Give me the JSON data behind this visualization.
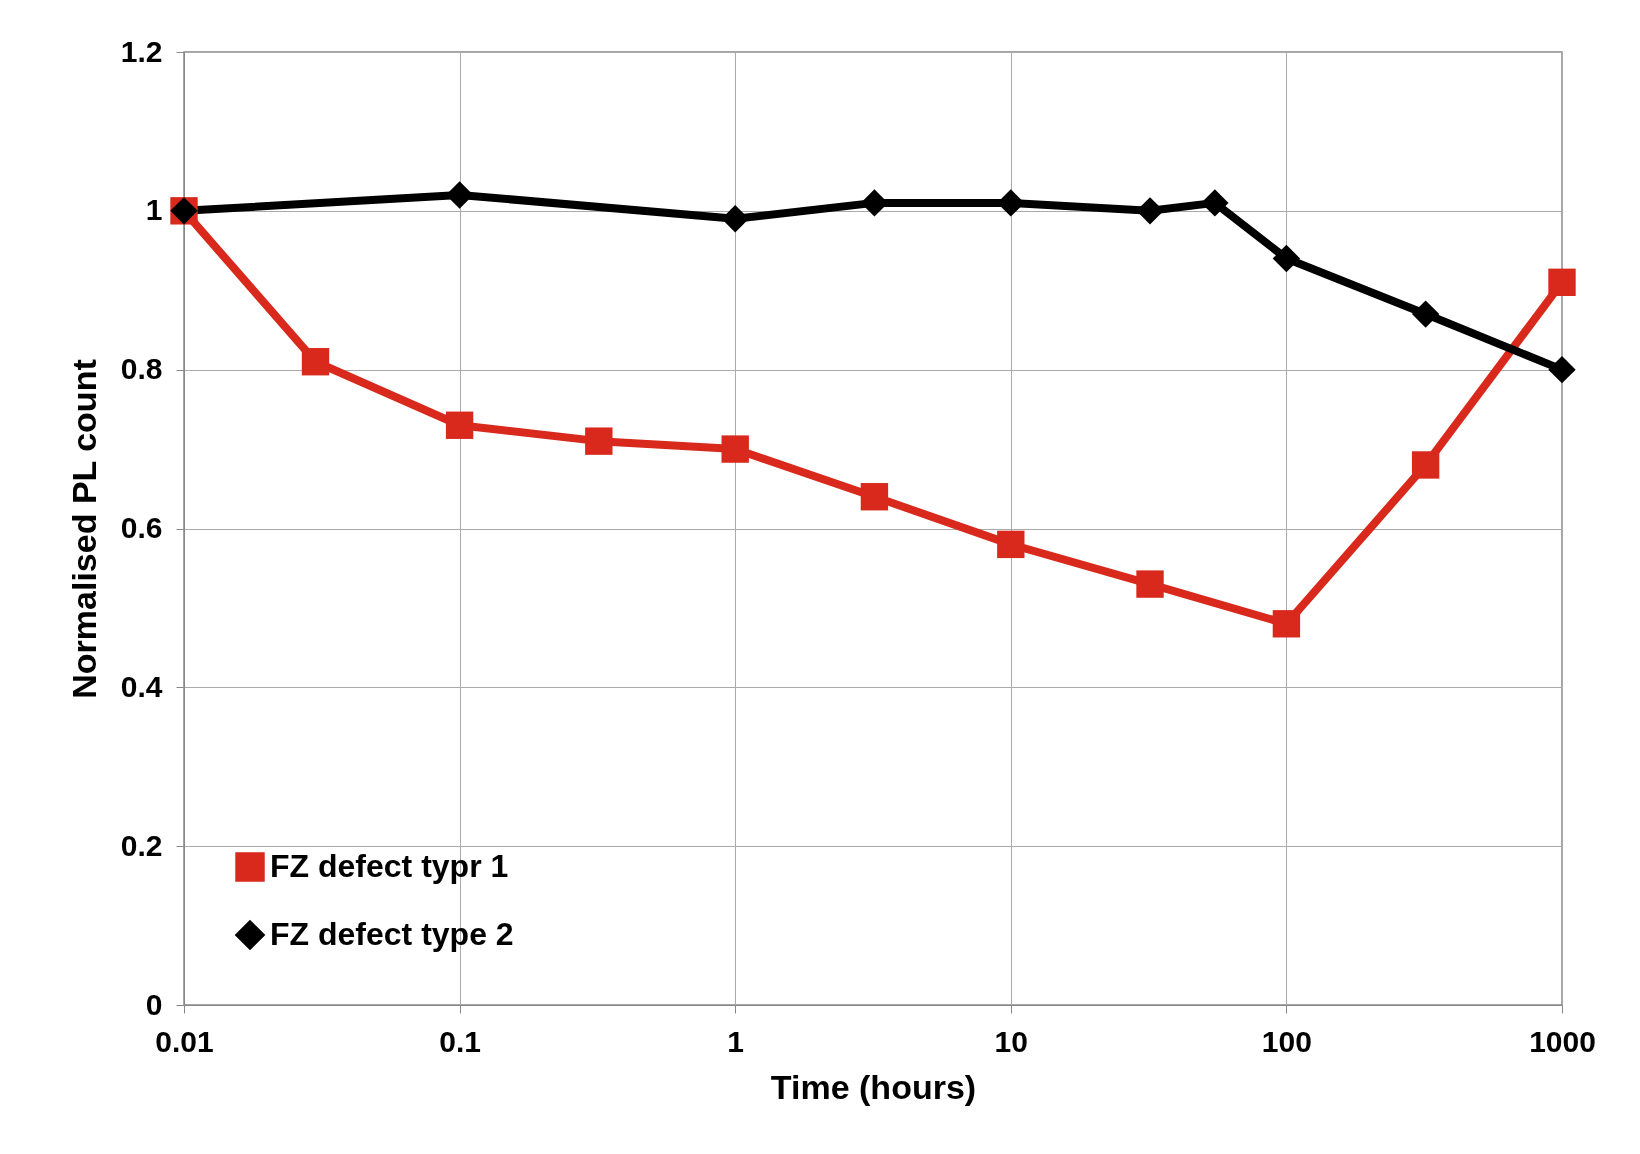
{
  "chart_data": {
    "type": "line",
    "xlabel": "Time (hours)",
    "ylabel": "Normalised PL count",
    "log": "x",
    "xlim": [
      0.01,
      1000
    ],
    "xticks": [
      0.01,
      0.1,
      1,
      10,
      100,
      1000
    ],
    "ylim": [
      0,
      1.2
    ],
    "yticks": [
      0,
      0.2,
      0.4,
      0.6,
      0.8,
      1,
      1.2
    ],
    "grid": true,
    "legend": "bottom left",
    "line_style": "solid",
    "series": [
      {
        "name": "FZ defect typr 1",
        "color": "#d8291c",
        "marker": "square",
        "x": [
          0.01,
          0.03,
          0.1,
          0.32,
          1,
          3.2,
          10,
          32,
          100,
          320,
          1000
        ],
        "values": [
          1.0,
          0.81,
          0.73,
          0.71,
          0.7,
          0.64,
          0.58,
          0.53,
          0.48,
          0.68,
          0.91
        ]
      },
      {
        "name": "FZ defect type 2",
        "color": "#000000",
        "marker": "diamond",
        "x": [
          0.01,
          0.1,
          1,
          3.2,
          10,
          32,
          55,
          100,
          320,
          1000
        ],
        "values": [
          1.0,
          1.02,
          0.99,
          1.01,
          1.01,
          1.0,
          1.01,
          0.94,
          0.87,
          0.8
        ]
      }
    ]
  }
}
